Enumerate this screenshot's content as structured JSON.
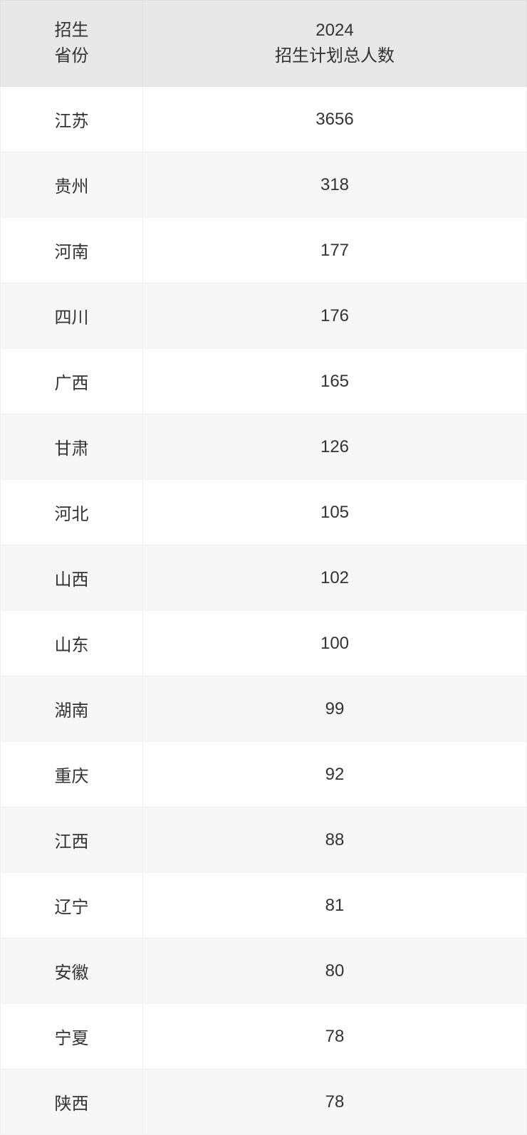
{
  "table": {
    "columns": [
      {
        "line1": "招生",
        "line2": "省份"
      },
      {
        "line1": "2024",
        "line2": "招生计划总人数"
      }
    ],
    "rows": [
      {
        "province": "江苏",
        "count": "3656"
      },
      {
        "province": "贵州",
        "count": "318"
      },
      {
        "province": "河南",
        "count": "177"
      },
      {
        "province": "四川",
        "count": "176"
      },
      {
        "province": "广西",
        "count": "165"
      },
      {
        "province": "甘肃",
        "count": "126"
      },
      {
        "province": "河北",
        "count": "105"
      },
      {
        "province": "山西",
        "count": "102"
      },
      {
        "province": "山东",
        "count": "100"
      },
      {
        "province": "湖南",
        "count": "99"
      },
      {
        "province": "重庆",
        "count": "92"
      },
      {
        "province": "江西",
        "count": "88"
      },
      {
        "province": "辽宁",
        "count": "81"
      },
      {
        "province": "安徽",
        "count": "80"
      },
      {
        "province": "宁夏",
        "count": "78"
      },
      {
        "province": "陕西",
        "count": "78"
      }
    ],
    "styling": {
      "header_bg": "#e8e8e8",
      "row_odd_bg": "#ffffff",
      "row_even_bg": "#f7f7f7",
      "text_color": "#333333",
      "border_color": "#e0e0e0",
      "font_size": 24,
      "col1_width": 200
    }
  }
}
